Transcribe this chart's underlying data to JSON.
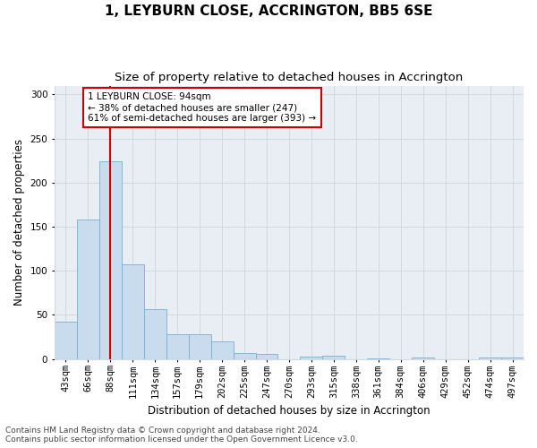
{
  "title": "1, LEYBURN CLOSE, ACCRINGTON, BB5 6SE",
  "subtitle": "Size of property relative to detached houses in Accrington",
  "xlabel": "Distribution of detached houses by size in Accrington",
  "ylabel": "Number of detached properties",
  "bar_labels": [
    "43sqm",
    "66sqm",
    "88sqm",
    "111sqm",
    "134sqm",
    "157sqm",
    "179sqm",
    "202sqm",
    "225sqm",
    "247sqm",
    "270sqm",
    "293sqm",
    "315sqm",
    "338sqm",
    "361sqm",
    "384sqm",
    "406sqm",
    "429sqm",
    "452sqm",
    "474sqm",
    "497sqm"
  ],
  "bar_values": [
    42,
    158,
    224,
    107,
    57,
    28,
    28,
    20,
    7,
    6,
    0,
    3,
    4,
    0,
    1,
    0,
    2,
    0,
    0,
    2,
    2
  ],
  "bar_color": "#c8dced",
  "bar_edge_color": "#7aaed0",
  "grid_color": "#d0d8e0",
  "bg_color": "#e8eef4",
  "marker_label": "1 LEYBURN CLOSE: 94sqm",
  "annotation_line1": "← 38% of detached houses are smaller (247)",
  "annotation_line2": "61% of semi-detached houses are larger (393) →",
  "annotation_box_color": "#ffffff",
  "annotation_border_color": "#cc0000",
  "vline_color": "#cc0000",
  "footer_line1": "Contains HM Land Registry data © Crown copyright and database right 2024.",
  "footer_line2": "Contains public sector information licensed under the Open Government Licence v3.0.",
  "ylim": [
    0,
    310
  ],
  "title_fontsize": 11,
  "subtitle_fontsize": 9.5,
  "axis_label_fontsize": 8.5,
  "tick_fontsize": 7.5,
  "annotation_fontsize": 7.5,
  "footer_fontsize": 6.5
}
